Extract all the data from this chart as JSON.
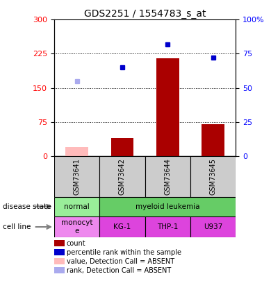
{
  "title": "GDS2251 / 1554783_s_at",
  "samples": [
    "GSM73641",
    "GSM73642",
    "GSM73644",
    "GSM73645"
  ],
  "bar_values": [
    20,
    40,
    215,
    70
  ],
  "bar_absent": [
    true,
    false,
    false,
    false
  ],
  "bar_color_present": "#aa0000",
  "bar_color_absent": "#ffbbbb",
  "rank_values": [
    55,
    65,
    82,
    72
  ],
  "rank_absent": [
    true,
    false,
    false,
    false
  ],
  "rank_color_present": "#0000cc",
  "rank_color_absent": "#aaaaee",
  "ylim_left": [
    0,
    300
  ],
  "ylim_right": [
    0,
    100
  ],
  "yticks_left": [
    0,
    75,
    150,
    225,
    300
  ],
  "yticks_right": [
    0,
    25,
    50,
    75,
    100
  ],
  "ytick_labels_right": [
    "0",
    "25",
    "50",
    "75",
    "100%"
  ],
  "disease_color_normal": "#99ee99",
  "disease_color_myeloid": "#66cc66",
  "cell_line_color_absent": "#ee88ee",
  "cell_line_color_present": "#dd44dd",
  "sample_box_color": "#cccccc",
  "legend_items": [
    {
      "label": "count",
      "color": "#aa0000"
    },
    {
      "label": "percentile rank within the sample",
      "color": "#0000cc"
    },
    {
      "label": "value, Detection Call = ABSENT",
      "color": "#ffbbbb"
    },
    {
      "label": "rank, Detection Call = ABSENT",
      "color": "#aaaaee"
    }
  ]
}
